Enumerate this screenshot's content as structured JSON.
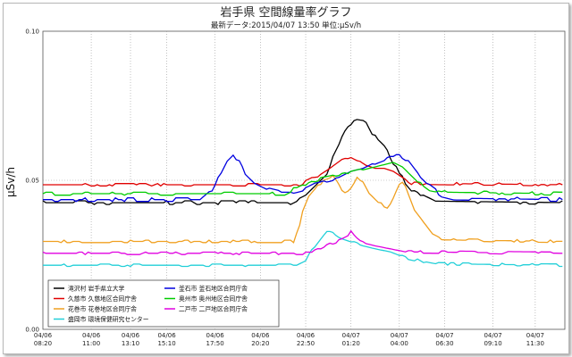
{
  "chart_data": {
    "type": "line",
    "title": "岩手県 空間線量率グラフ",
    "subtitle": "最新データ:2015/04/07 13:50  単位:μSv/h",
    "ylabel": "μSv/h",
    "ylim": [
      0,
      0.1
    ],
    "yticks": [
      "0.00",
      "0.05",
      "0.10"
    ],
    "xlim": [
      0,
      1728
    ],
    "xticks": [
      {
        "t": 0,
        "date": "04/06",
        "time": "08:20"
      },
      {
        "t": 160,
        "date": "04/06",
        "time": "11:00"
      },
      {
        "t": 290,
        "date": "04/06",
        "time": "13:10"
      },
      {
        "t": 410,
        "date": "04/06",
        "time": "15:10"
      },
      {
        "t": 570,
        "date": "04/06",
        "time": "17:50"
      },
      {
        "t": 720,
        "date": "04/06",
        "time": "20:20"
      },
      {
        "t": 870,
        "date": "04/06",
        "time": "22:50"
      },
      {
        "t": 1020,
        "date": "04/07",
        "time": "01:20"
      },
      {
        "t": 1180,
        "date": "04/07",
        "time": "04:00"
      },
      {
        "t": 1330,
        "date": "04/07",
        "time": "06:30"
      },
      {
        "t": 1490,
        "date": "04/07",
        "time": "09:10"
      },
      {
        "t": 1630,
        "date": "04/07",
        "time": "11:30"
      }
    ],
    "grid": true,
    "legend_position": "bottom-left",
    "series": [
      {
        "name": "滝沢村  岩手県立大学",
        "color": "#000000",
        "baseline": 0.0425,
        "noise": 0.0006,
        "points": [
          [
            0,
            0.0425
          ],
          [
            820,
            0.0425
          ],
          [
            870,
            0.045
          ],
          [
            900,
            0.048
          ],
          [
            940,
            0.052
          ],
          [
            970,
            0.06
          ],
          [
            1000,
            0.066
          ],
          [
            1030,
            0.07
          ],
          [
            1055,
            0.071
          ],
          [
            1070,
            0.07
          ],
          [
            1090,
            0.066
          ],
          [
            1110,
            0.063
          ],
          [
            1130,
            0.061
          ],
          [
            1150,
            0.058
          ],
          [
            1170,
            0.054
          ],
          [
            1195,
            0.05
          ],
          [
            1220,
            0.047
          ],
          [
            1260,
            0.045
          ],
          [
            1300,
            0.043
          ],
          [
            1728,
            0.0425
          ]
        ]
      },
      {
        "name": "久慈市  久慈地区合同庁舎",
        "color": "#e00000",
        "baseline": 0.0485,
        "noise": 0.0004,
        "points": [
          [
            0,
            0.0485
          ],
          [
            850,
            0.0485
          ],
          [
            880,
            0.05
          ],
          [
            920,
            0.052
          ],
          [
            950,
            0.054
          ],
          [
            990,
            0.057
          ],
          [
            1020,
            0.058
          ],
          [
            1040,
            0.057
          ],
          [
            1070,
            0.055
          ],
          [
            1100,
            0.054
          ],
          [
            1130,
            0.054
          ],
          [
            1160,
            0.053
          ],
          [
            1190,
            0.051
          ],
          [
            1220,
            0.049
          ],
          [
            1728,
            0.0485
          ]
        ]
      },
      {
        "name": "花巻市  花巻地区合同庁舎",
        "color": "#f0a020",
        "baseline": 0.0295,
        "noise": 0.0004,
        "points": [
          [
            0,
            0.0295
          ],
          [
            830,
            0.0295
          ],
          [
            845,
            0.033
          ],
          [
            860,
            0.04
          ],
          [
            880,
            0.045
          ],
          [
            905,
            0.048
          ],
          [
            935,
            0.05
          ],
          [
            960,
            0.052
          ],
          [
            975,
            0.05
          ],
          [
            995,
            0.046
          ],
          [
            1015,
            0.047
          ],
          [
            1040,
            0.051
          ],
          [
            1060,
            0.049
          ],
          [
            1080,
            0.046
          ],
          [
            1100,
            0.044
          ],
          [
            1120,
            0.042
          ],
          [
            1135,
            0.04
          ],
          [
            1150,
            0.042
          ],
          [
            1170,
            0.046
          ],
          [
            1185,
            0.05
          ],
          [
            1200,
            0.048
          ],
          [
            1230,
            0.04
          ],
          [
            1260,
            0.036
          ],
          [
            1290,
            0.032
          ],
          [
            1330,
            0.03
          ],
          [
            1728,
            0.0295
          ]
        ]
      },
      {
        "name": "盛岡市  環境保健研究センター",
        "color": "#22cfd8",
        "baseline": 0.0215,
        "noise": 0.0004,
        "points": [
          [
            0,
            0.0215
          ],
          [
            840,
            0.0215
          ],
          [
            870,
            0.023
          ],
          [
            900,
            0.028
          ],
          [
            930,
            0.032
          ],
          [
            955,
            0.033
          ],
          [
            975,
            0.031
          ],
          [
            1000,
            0.03
          ],
          [
            1030,
            0.029
          ],
          [
            1060,
            0.028
          ],
          [
            1100,
            0.027
          ],
          [
            1150,
            0.026
          ],
          [
            1200,
            0.024
          ],
          [
            1250,
            0.023
          ],
          [
            1300,
            0.022
          ],
          [
            1728,
            0.0215
          ]
        ]
      },
      {
        "name": "釜石市  釜石地区合同庁舎",
        "color": "#0000e0",
        "baseline": 0.0435,
        "noise": 0.0006,
        "points": [
          [
            0,
            0.0435
          ],
          [
            520,
            0.0435
          ],
          [
            560,
            0.047
          ],
          [
            590,
            0.053
          ],
          [
            610,
            0.057
          ],
          [
            630,
            0.059
          ],
          [
            650,
            0.056
          ],
          [
            670,
            0.052
          ],
          [
            700,
            0.049
          ],
          [
            740,
            0.047
          ],
          [
            780,
            0.046
          ],
          [
            820,
            0.046
          ],
          [
            860,
            0.047
          ],
          [
            900,
            0.049
          ],
          [
            940,
            0.05
          ],
          [
            980,
            0.051
          ],
          [
            1020,
            0.053
          ],
          [
            1060,
            0.054
          ],
          [
            1100,
            0.056
          ],
          [
            1150,
            0.058
          ],
          [
            1180,
            0.058
          ],
          [
            1210,
            0.056
          ],
          [
            1240,
            0.052
          ],
          [
            1280,
            0.048
          ],
          [
            1320,
            0.045
          ],
          [
            1360,
            0.044
          ],
          [
            1728,
            0.0435
          ]
        ]
      },
      {
        "name": "奥州市  奥州地区合同庁舎",
        "color": "#00cc00",
        "baseline": 0.0455,
        "noise": 0.0005,
        "points": [
          [
            0,
            0.0455
          ],
          [
            800,
            0.0455
          ],
          [
            850,
            0.048
          ],
          [
            900,
            0.05
          ],
          [
            950,
            0.051
          ],
          [
            1000,
            0.052
          ],
          [
            1040,
            0.053
          ],
          [
            1080,
            0.054
          ],
          [
            1120,
            0.055
          ],
          [
            1160,
            0.056
          ],
          [
            1200,
            0.054
          ],
          [
            1240,
            0.05
          ],
          [
            1280,
            0.047
          ],
          [
            1330,
            0.046
          ],
          [
            1728,
            0.0455
          ]
        ]
      },
      {
        "name": "二戸市  二戸地区合同庁舎",
        "color": "#e000e0",
        "baseline": 0.0255,
        "noise": 0.0004,
        "points": [
          [
            0,
            0.0255
          ],
          [
            880,
            0.0255
          ],
          [
            920,
            0.027
          ],
          [
            960,
            0.029
          ],
          [
            990,
            0.03
          ],
          [
            1010,
            0.031
          ],
          [
            1020,
            0.033
          ],
          [
            1035,
            0.031
          ],
          [
            1060,
            0.029
          ],
          [
            1100,
            0.028
          ],
          [
            1150,
            0.027
          ],
          [
            1200,
            0.026
          ],
          [
            1728,
            0.0255
          ]
        ]
      }
    ]
  }
}
